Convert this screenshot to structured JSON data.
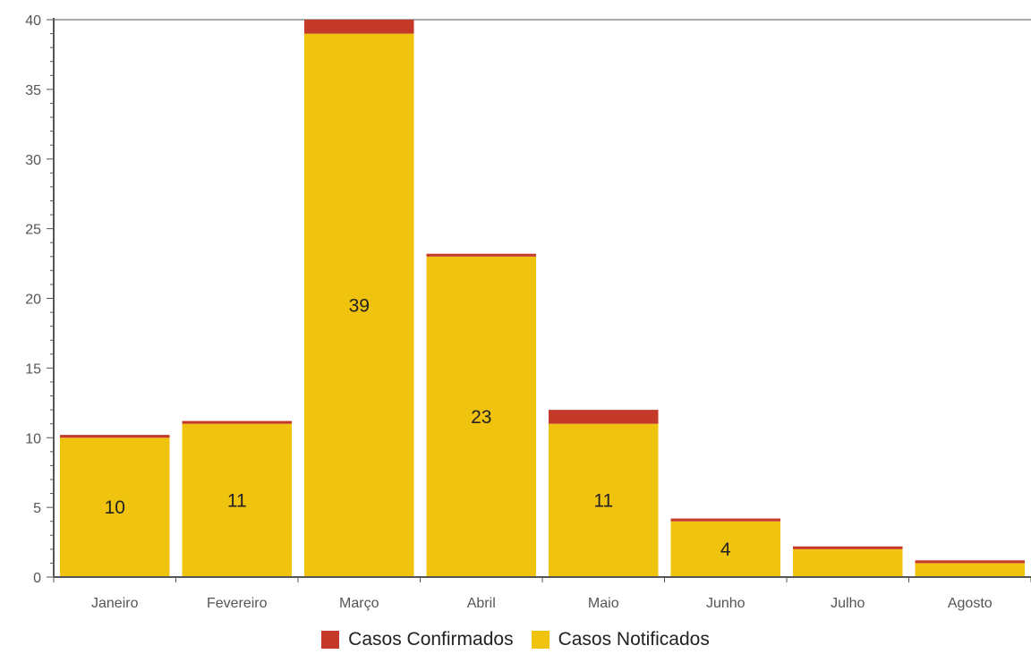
{
  "chart_data": {
    "type": "bar",
    "stacked": true,
    "categories": [
      "Janeiro",
      "Fevereiro",
      "Março",
      "Abril",
      "Maio",
      "Junho",
      "Julho",
      "Agosto"
    ],
    "series": [
      {
        "name": "Casos Notificados",
        "color": "#F0C30F",
        "values": [
          10,
          11,
          39,
          23,
          11,
          4,
          2,
          1
        ]
      },
      {
        "name": "Casos Confirmados",
        "color": "#C4392A",
        "values": [
          0.2,
          0.2,
          1,
          0.2,
          1,
          0.2,
          0.2,
          0.2
        ]
      }
    ],
    "data_labels": [
      "10",
      "11",
      "39",
      "23",
      "11",
      "4",
      "",
      ""
    ],
    "ylim": [
      0,
      40
    ],
    "yticks": [
      0,
      5,
      10,
      15,
      20,
      25,
      30,
      35,
      40
    ],
    "grid": false,
    "legend_position": "bottom"
  },
  "legend": {
    "confirmados_label": "Casos Confirmados",
    "notificados_label": "Casos Notificados"
  }
}
